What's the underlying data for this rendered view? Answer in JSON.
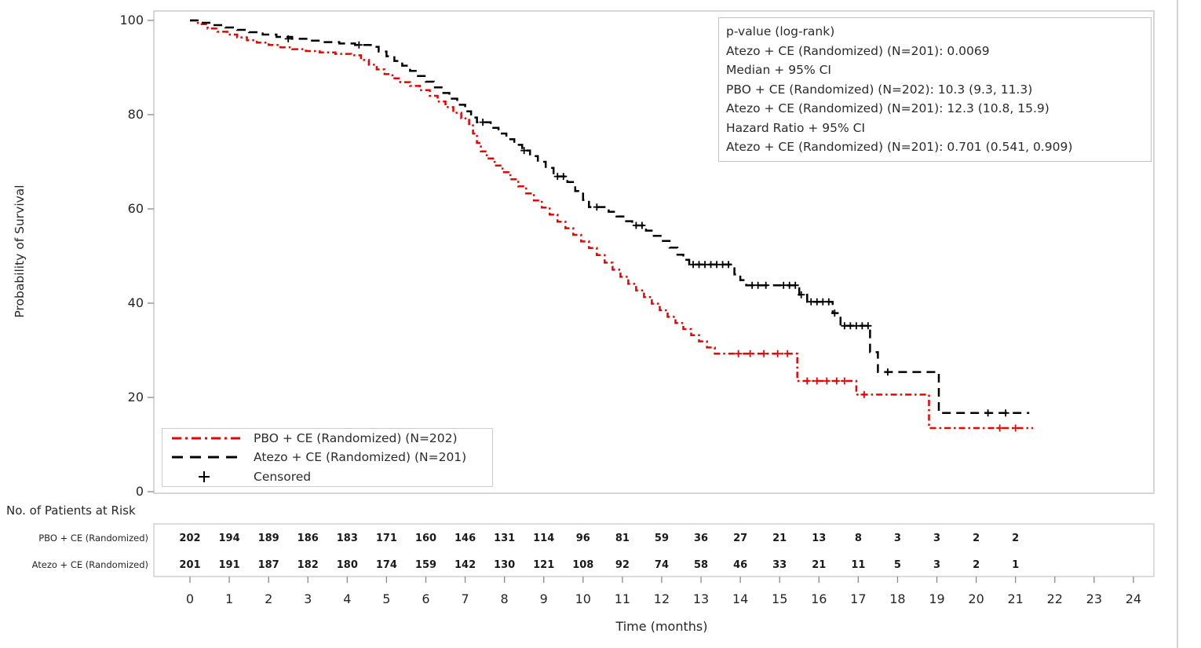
{
  "annotation_box": {
    "lines": [
      "p-value (log-rank)",
      "Atezo + CE (Randomized) (N=201): 0.0069",
      "Median + 95% CI",
      "PBO + CE (Randomized) (N=202): 10.3 (9.3, 11.3)",
      "Atezo + CE (Randomized) (N=201): 12.3 (10.8, 15.9)",
      "Hazard Ratio + 95% CI",
      "Atezo + CE (Randomized) (N=201): 0.701 (0.541, 0.909)"
    ]
  },
  "legend": {
    "items": [
      {
        "label": "PBO + CE (Randomized) (N=202)"
      },
      {
        "label": "Atezo + CE (Randomized) (N=201)"
      },
      {
        "label": "Censored"
      }
    ]
  },
  "chart_data": {
    "type": "line",
    "subtype": "kaplan-meier",
    "title": "",
    "xlabel": "Time (months)",
    "ylabel": "Probability of Survival",
    "xlim": [
      0,
      24
    ],
    "ylim": [
      0,
      100
    ],
    "x_ticks": [
      0,
      1,
      2,
      3,
      4,
      5,
      6,
      7,
      8,
      9,
      10,
      11,
      12,
      13,
      14,
      15,
      16,
      17,
      18,
      19,
      20,
      21,
      22,
      23,
      24
    ],
    "y_ticks": [
      0,
      20,
      40,
      60,
      80,
      100
    ],
    "grid": false,
    "legend_position": "inside-bottom-left",
    "stats_box": {
      "p_value_log_rank": {
        "group": "Atezo + CE (Randomized) (N=201)",
        "value": 0.0069
      },
      "median_95ci": [
        {
          "group": "PBO + CE (Randomized) (N=202)",
          "median": 10.3,
          "ci": [
            9.3,
            11.3
          ]
        },
        {
          "group": "Atezo + CE (Randomized) (N=201)",
          "median": 12.3,
          "ci": [
            10.8,
            15.9
          ]
        }
      ],
      "hazard_ratio_95ci": {
        "group": "Atezo + CE (Randomized) (N=201)",
        "hr": 0.701,
        "ci": [
          0.541,
          0.909
        ]
      }
    },
    "series": [
      {
        "name": "PBO + CE (Randomized) (N=202)",
        "color": "#ee0000",
        "dash": "dash-dot",
        "step": true,
        "points": [
          [
            0,
            100
          ],
          [
            0.2,
            99.2
          ],
          [
            0.45,
            98.3
          ],
          [
            0.7,
            97.6
          ],
          [
            0.95,
            97.0
          ],
          [
            1.2,
            96.4
          ],
          [
            1.45,
            95.8
          ],
          [
            1.7,
            95.3
          ],
          [
            2.0,
            94.8
          ],
          [
            2.3,
            94.3
          ],
          [
            2.6,
            93.9
          ],
          [
            2.95,
            93.5
          ],
          [
            3.3,
            93.2
          ],
          [
            3.7,
            92.9
          ],
          [
            4.1,
            92.6
          ],
          [
            4.35,
            91.6
          ],
          [
            4.55,
            90.6
          ],
          [
            4.75,
            89.6
          ],
          [
            4.95,
            88.6
          ],
          [
            5.15,
            87.7
          ],
          [
            5.35,
            86.9
          ],
          [
            5.6,
            86.1
          ],
          [
            5.85,
            85.2
          ],
          [
            6.1,
            84.0
          ],
          [
            6.3,
            82.8
          ],
          [
            6.5,
            81.6
          ],
          [
            6.7,
            80.4
          ],
          [
            6.9,
            79.2
          ],
          [
            7.1,
            78.0
          ],
          [
            7.2,
            76.0
          ],
          [
            7.3,
            74.0
          ],
          [
            7.4,
            72.2
          ],
          [
            7.55,
            70.7
          ],
          [
            7.75,
            69.2
          ],
          [
            7.95,
            67.8
          ],
          [
            8.15,
            66.3
          ],
          [
            8.35,
            64.8
          ],
          [
            8.55,
            63.3
          ],
          [
            8.75,
            61.8
          ],
          [
            8.95,
            60.3
          ],
          [
            9.15,
            58.8
          ],
          [
            9.35,
            57.3
          ],
          [
            9.55,
            55.9
          ],
          [
            9.75,
            54.5
          ],
          [
            9.95,
            53.1
          ],
          [
            10.15,
            51.7
          ],
          [
            10.35,
            50.2
          ],
          [
            10.55,
            48.6
          ],
          [
            10.75,
            47.1
          ],
          [
            10.95,
            45.6
          ],
          [
            11.15,
            44.1
          ],
          [
            11.35,
            42.7
          ],
          [
            11.55,
            41.3
          ],
          [
            11.75,
            39.9
          ],
          [
            11.95,
            38.5
          ],
          [
            12.15,
            37.1
          ],
          [
            12.35,
            35.8
          ],
          [
            12.55,
            34.5
          ],
          [
            12.75,
            33.2
          ],
          [
            12.95,
            31.9
          ],
          [
            13.15,
            30.6
          ],
          [
            13.35,
            29.3
          ],
          [
            15.45,
            23.5
          ],
          [
            16.95,
            20.6
          ],
          [
            18.8,
            13.5
          ],
          [
            21.45,
            13.5
          ]
        ],
        "censored": [
          [
            13.95,
            29.3
          ],
          [
            14.25,
            29.3
          ],
          [
            14.6,
            29.3
          ],
          [
            14.95,
            29.3
          ],
          [
            15.2,
            29.3
          ],
          [
            15.7,
            23.5
          ],
          [
            15.95,
            23.5
          ],
          [
            16.2,
            23.5
          ],
          [
            16.45,
            23.5
          ],
          [
            16.65,
            23.5
          ],
          [
            17.15,
            20.6
          ],
          [
            20.6,
            13.5
          ],
          [
            21.0,
            13.5
          ]
        ]
      },
      {
        "name": "Atezo + CE (Randomized) (N=201)",
        "color": "#000000",
        "dash": "dash",
        "step": true,
        "points": [
          [
            0,
            100
          ],
          [
            0.3,
            99.5
          ],
          [
            0.6,
            99.0
          ],
          [
            0.9,
            98.5
          ],
          [
            1.2,
            98.0
          ],
          [
            1.5,
            97.5
          ],
          [
            1.85,
            97.0
          ],
          [
            2.2,
            96.5
          ],
          [
            2.6,
            96.1
          ],
          [
            3.0,
            95.7
          ],
          [
            3.4,
            95.4
          ],
          [
            3.8,
            95.1
          ],
          [
            4.2,
            94.8
          ],
          [
            4.6,
            94.4
          ],
          [
            4.8,
            93.4
          ],
          [
            5.0,
            92.4
          ],
          [
            5.2,
            91.4
          ],
          [
            5.4,
            90.4
          ],
          [
            5.6,
            89.3
          ],
          [
            5.8,
            88.2
          ],
          [
            6.0,
            87.0
          ],
          [
            6.2,
            85.8
          ],
          [
            6.4,
            84.6
          ],
          [
            6.6,
            83.4
          ],
          [
            6.8,
            82.1
          ],
          [
            7.0,
            80.7
          ],
          [
            7.15,
            79.4
          ],
          [
            7.3,
            78.4
          ],
          [
            7.65,
            77.2
          ],
          [
            7.85,
            76.0
          ],
          [
            8.05,
            74.8
          ],
          [
            8.25,
            73.6
          ],
          [
            8.45,
            72.4
          ],
          [
            8.65,
            71.2
          ],
          [
            8.85,
            70.0
          ],
          [
            9.05,
            68.7
          ],
          [
            9.25,
            66.9
          ],
          [
            9.6,
            65.7
          ],
          [
            9.8,
            63.8
          ],
          [
            10.0,
            61.9
          ],
          [
            10.15,
            60.4
          ],
          [
            10.65,
            59.4
          ],
          [
            10.85,
            58.4
          ],
          [
            11.05,
            57.4
          ],
          [
            11.25,
            56.5
          ],
          [
            11.6,
            55.4
          ],
          [
            11.8,
            54.3
          ],
          [
            12.0,
            53.2
          ],
          [
            12.2,
            51.8
          ],
          [
            12.4,
            50.3
          ],
          [
            12.55,
            49.2
          ],
          [
            12.7,
            48.2
          ],
          [
            13.85,
            46.1
          ],
          [
            14.0,
            44.9
          ],
          [
            14.15,
            43.8
          ],
          [
            15.5,
            41.8
          ],
          [
            15.7,
            40.3
          ],
          [
            16.35,
            37.9
          ],
          [
            16.55,
            35.2
          ],
          [
            17.3,
            29.6
          ],
          [
            17.5,
            25.4
          ],
          [
            19.05,
            16.7
          ],
          [
            21.35,
            16.7
          ]
        ],
        "censored": [
          [
            2.5,
            96.1
          ],
          [
            4.3,
            94.8
          ],
          [
            7.45,
            78.4
          ],
          [
            8.5,
            72.4
          ],
          [
            9.35,
            66.9
          ],
          [
            9.5,
            66.9
          ],
          [
            10.35,
            60.4
          ],
          [
            11.35,
            56.5
          ],
          [
            11.5,
            56.5
          ],
          [
            12.8,
            48.2
          ],
          [
            12.95,
            48.2
          ],
          [
            13.1,
            48.2
          ],
          [
            13.25,
            48.2
          ],
          [
            13.4,
            48.2
          ],
          [
            13.55,
            48.2
          ],
          [
            13.7,
            48.2
          ],
          [
            14.3,
            43.8
          ],
          [
            14.45,
            43.8
          ],
          [
            14.65,
            43.8
          ],
          [
            15.1,
            43.8
          ],
          [
            15.25,
            43.8
          ],
          [
            15.4,
            43.8
          ],
          [
            15.55,
            41.8
          ],
          [
            15.8,
            40.3
          ],
          [
            15.95,
            40.3
          ],
          [
            16.1,
            40.3
          ],
          [
            16.25,
            40.3
          ],
          [
            16.4,
            37.9
          ],
          [
            16.65,
            35.2
          ],
          [
            16.8,
            35.2
          ],
          [
            16.95,
            35.2
          ],
          [
            17.1,
            35.2
          ],
          [
            17.25,
            35.2
          ],
          [
            17.75,
            25.4
          ],
          [
            20.3,
            16.7
          ],
          [
            20.75,
            16.7
          ]
        ]
      }
    ],
    "risk_table": {
      "title": "No. of Patients at Risk",
      "months": [
        0,
        1,
        2,
        3,
        4,
        5,
        6,
        7,
        8,
        9,
        10,
        11,
        12,
        13,
        14,
        15,
        16,
        17,
        18,
        19,
        20,
        21
      ],
      "rows": [
        {
          "label": "PBO + CE (Randomized)",
          "counts": [
            202,
            194,
            189,
            186,
            183,
            171,
            160,
            146,
            131,
            114,
            96,
            81,
            59,
            36,
            27,
            21,
            13,
            8,
            3,
            3,
            2,
            2
          ]
        },
        {
          "label": "Atezo + CE (Randomized)",
          "counts": [
            201,
            191,
            187,
            182,
            180,
            174,
            159,
            142,
            130,
            121,
            108,
            92,
            74,
            58,
            46,
            33,
            21,
            11,
            5,
            3,
            2,
            1
          ]
        }
      ]
    }
  }
}
